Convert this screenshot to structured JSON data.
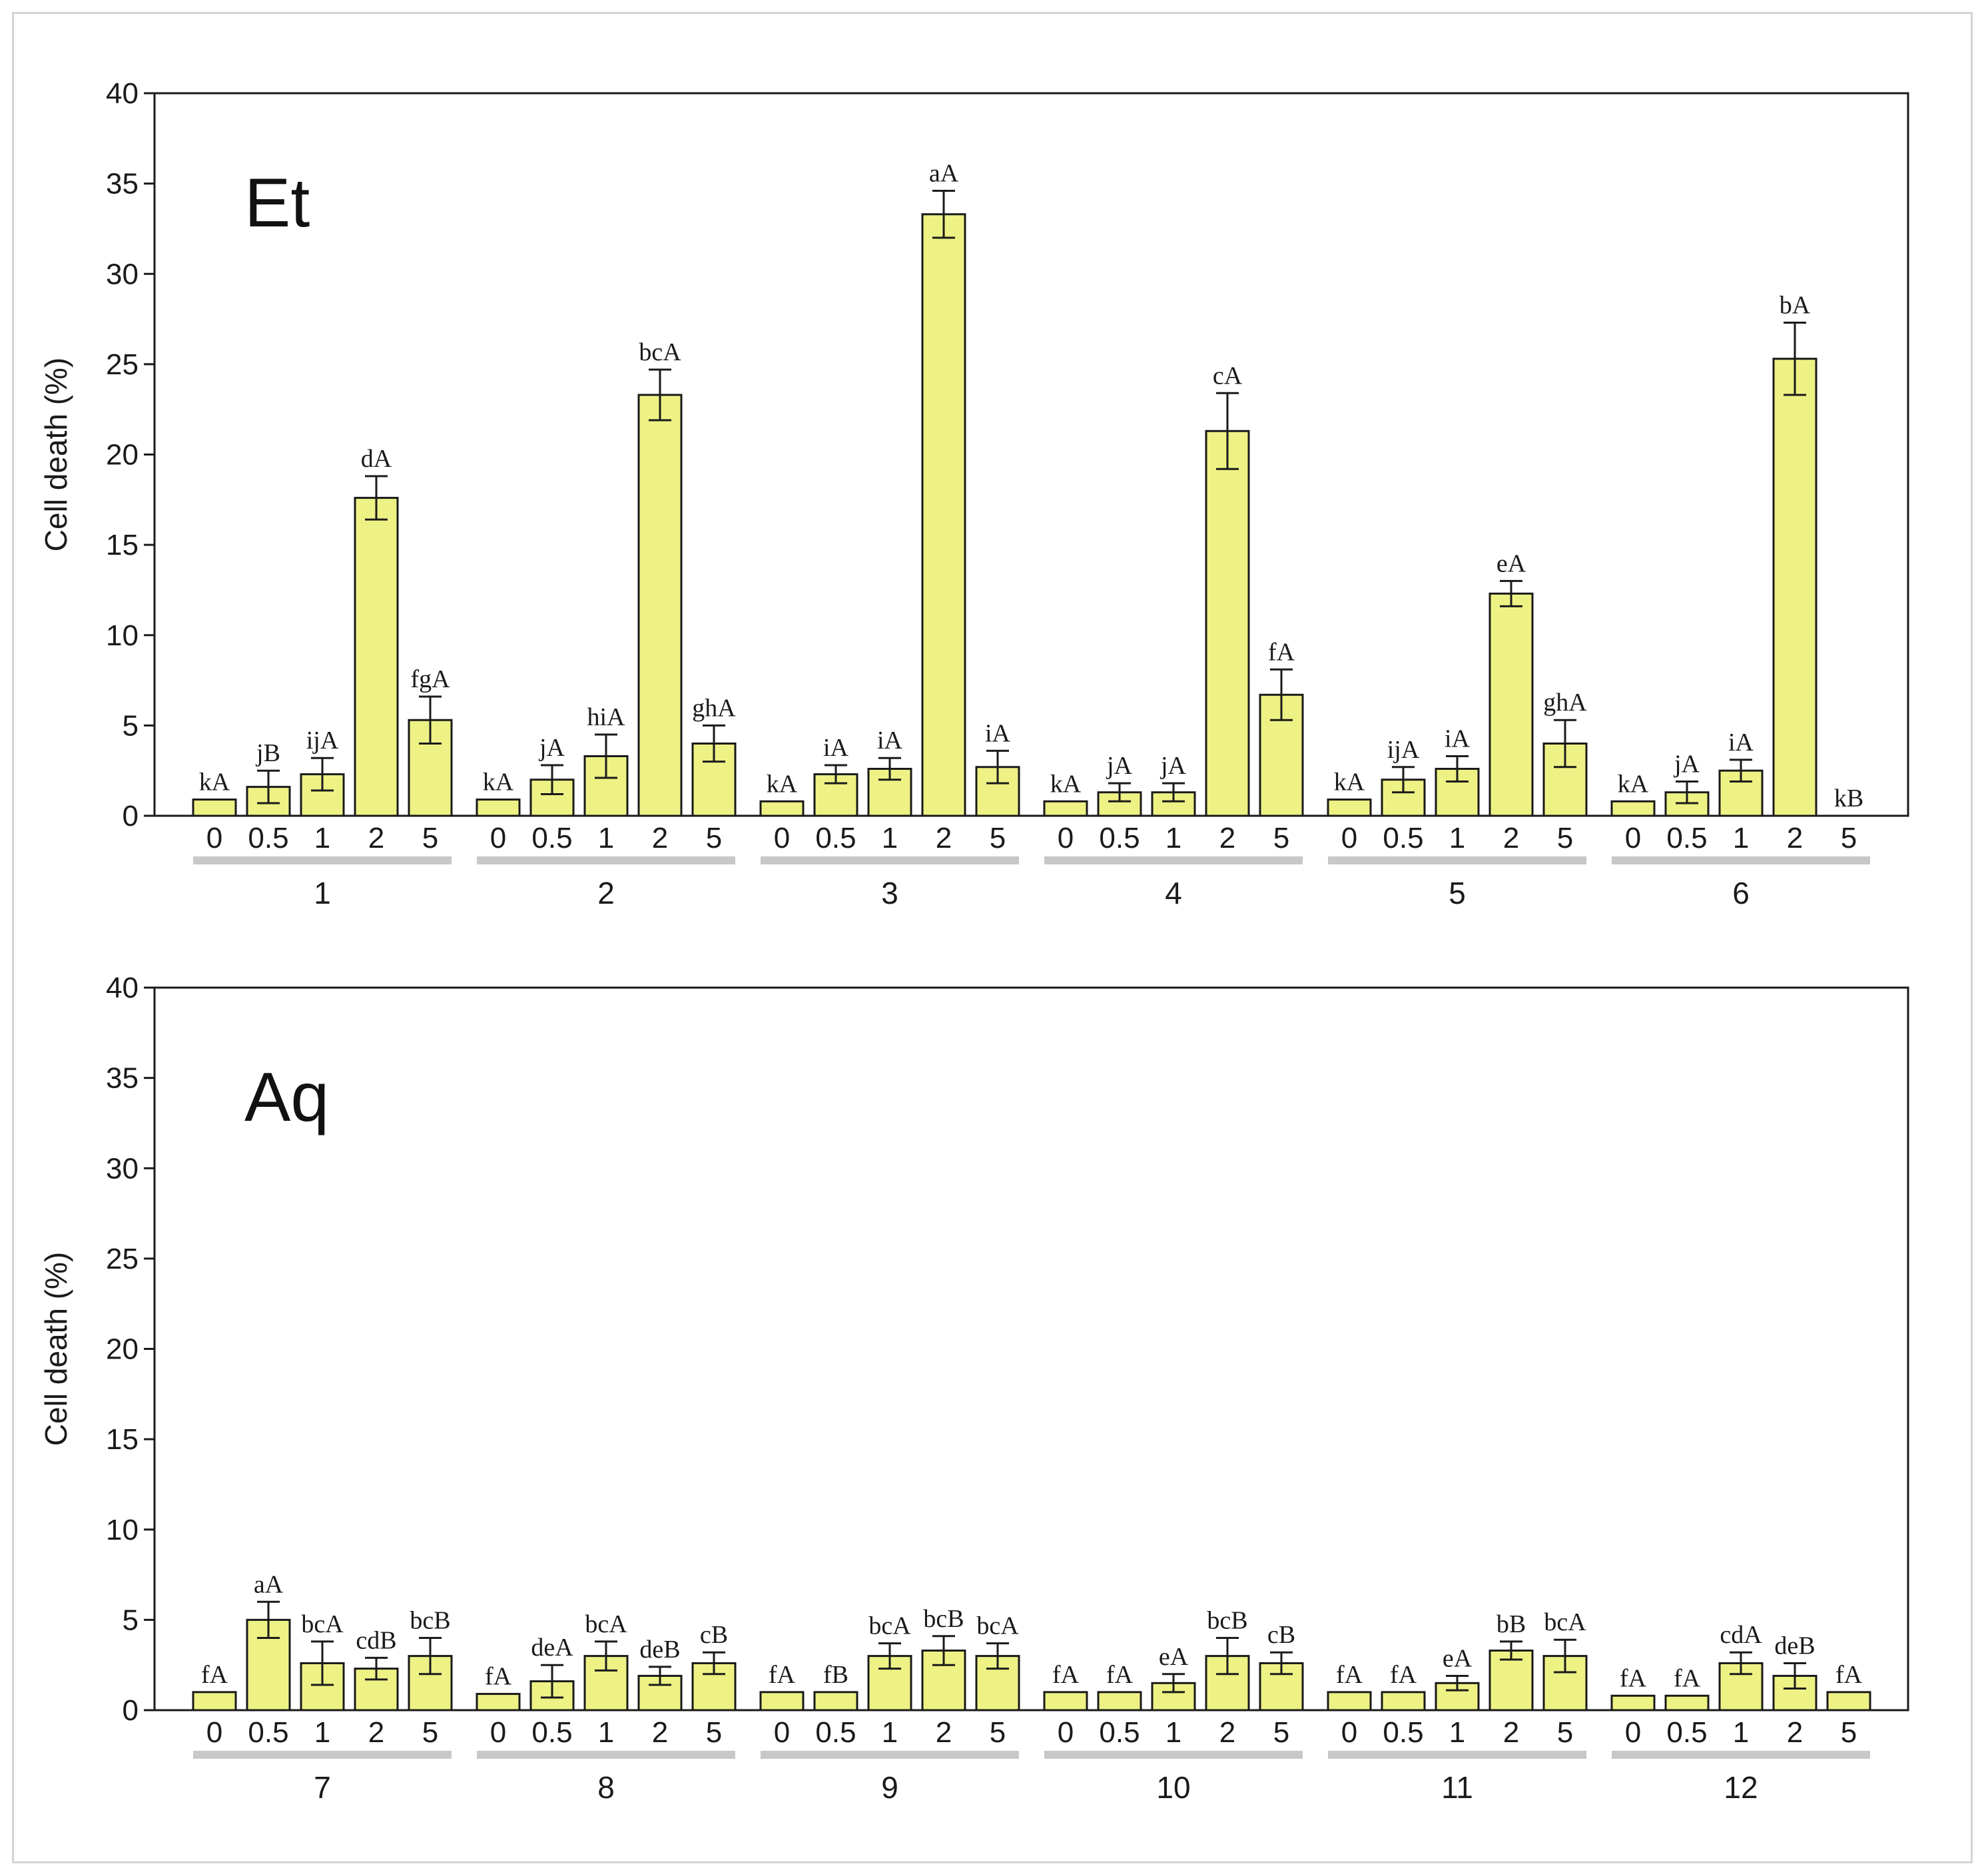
{
  "colors": {
    "bar_fill": "#eef285",
    "bar_stroke": "#1a1a1a",
    "group_underline": "#c8c8c8",
    "axis": "#1a1a1a"
  },
  "chart_data": [
    {
      "type": "bar",
      "panel_label": "Et",
      "ylabel": "Cell death (%)",
      "ylim": [
        0,
        40
      ],
      "yticks": [
        0,
        5,
        10,
        15,
        20,
        25,
        30,
        35,
        40
      ],
      "concentrations": [
        "0",
        "0.5",
        "1",
        "2",
        "5"
      ],
      "groups": [
        {
          "name": "1",
          "values": [
            0.9,
            1.6,
            2.3,
            17.6,
            5.3
          ],
          "errors": [
            0.0,
            0.9,
            0.9,
            1.2,
            1.3
          ],
          "labels": [
            "kA",
            "jB",
            "ijA",
            "dA",
            "fgA"
          ]
        },
        {
          "name": "2",
          "values": [
            0.9,
            2.0,
            3.3,
            23.3,
            4.0
          ],
          "errors": [
            0.0,
            0.8,
            1.2,
            1.4,
            1.0
          ],
          "labels": [
            "kA",
            "jA",
            "hiA",
            "bcA",
            "ghA"
          ]
        },
        {
          "name": "3",
          "values": [
            0.8,
            2.3,
            2.6,
            33.3,
            2.7
          ],
          "errors": [
            0.0,
            0.5,
            0.6,
            1.3,
            0.9
          ],
          "labels": [
            "kA",
            "iA",
            "iA",
            "aA",
            "iA"
          ]
        },
        {
          "name": "4",
          "values": [
            0.8,
            1.3,
            1.3,
            21.3,
            6.7
          ],
          "errors": [
            0.0,
            0.5,
            0.5,
            2.1,
            1.4
          ],
          "labels": [
            "kA",
            "jA",
            "jA",
            "cA",
            "fA"
          ]
        },
        {
          "name": "5",
          "values": [
            0.9,
            2.0,
            2.6,
            12.3,
            4.0
          ],
          "errors": [
            0.0,
            0.7,
            0.7,
            0.7,
            1.3
          ],
          "labels": [
            "kA",
            "ijA",
            "iA",
            "eA",
            "ghA"
          ]
        },
        {
          "name": "6",
          "values": [
            0.8,
            1.3,
            2.5,
            25.3,
            0.0
          ],
          "errors": [
            0.0,
            0.6,
            0.6,
            2.0,
            0.0
          ],
          "labels": [
            "kA",
            "jA",
            "iA",
            "bA",
            "kB"
          ]
        }
      ]
    },
    {
      "type": "bar",
      "panel_label": "Aq",
      "ylabel": "Cell death (%)",
      "ylim": [
        0,
        40
      ],
      "yticks": [
        0,
        5,
        10,
        15,
        20,
        25,
        30,
        35,
        40
      ],
      "concentrations": [
        "0",
        "0.5",
        "1",
        "2",
        "5"
      ],
      "groups": [
        {
          "name": "7",
          "values": [
            1.0,
            5.0,
            2.6,
            2.3,
            3.0
          ],
          "errors": [
            0.0,
            1.0,
            1.2,
            0.6,
            1.0
          ],
          "labels": [
            "fA",
            "aA",
            "bcA",
            "cdB",
            "bcB"
          ]
        },
        {
          "name": "8",
          "values": [
            0.9,
            1.6,
            3.0,
            1.9,
            2.6
          ],
          "errors": [
            0.0,
            0.9,
            0.8,
            0.5,
            0.6
          ],
          "labels": [
            "fA",
            "deA",
            "bcA",
            "deB",
            "cB"
          ]
        },
        {
          "name": "9",
          "values": [
            1.0,
            1.0,
            3.0,
            3.3,
            3.0
          ],
          "errors": [
            0.0,
            0.0,
            0.7,
            0.8,
            0.7
          ],
          "labels": [
            "fA",
            "fB",
            "bcA",
            "bcB",
            "bcA"
          ]
        },
        {
          "name": "10",
          "values": [
            1.0,
            1.0,
            1.5,
            3.0,
            2.6
          ],
          "errors": [
            0.0,
            0.0,
            0.5,
            1.0,
            0.6
          ],
          "labels": [
            "fA",
            "fA",
            "eA",
            "bcB",
            "cB"
          ]
        },
        {
          "name": "11",
          "values": [
            1.0,
            1.0,
            1.5,
            3.3,
            3.0
          ],
          "errors": [
            0.0,
            0.0,
            0.4,
            0.5,
            0.9
          ],
          "labels": [
            "fA",
            "fA",
            "eA",
            "bB",
            "bcA"
          ]
        },
        {
          "name": "12",
          "values": [
            0.8,
            0.8,
            2.6,
            1.9,
            1.0
          ],
          "errors": [
            0.0,
            0.0,
            0.6,
            0.7,
            0.0
          ],
          "labels": [
            "fA",
            "fA",
            "cdA",
            "deB",
            "fA"
          ]
        }
      ]
    }
  ]
}
